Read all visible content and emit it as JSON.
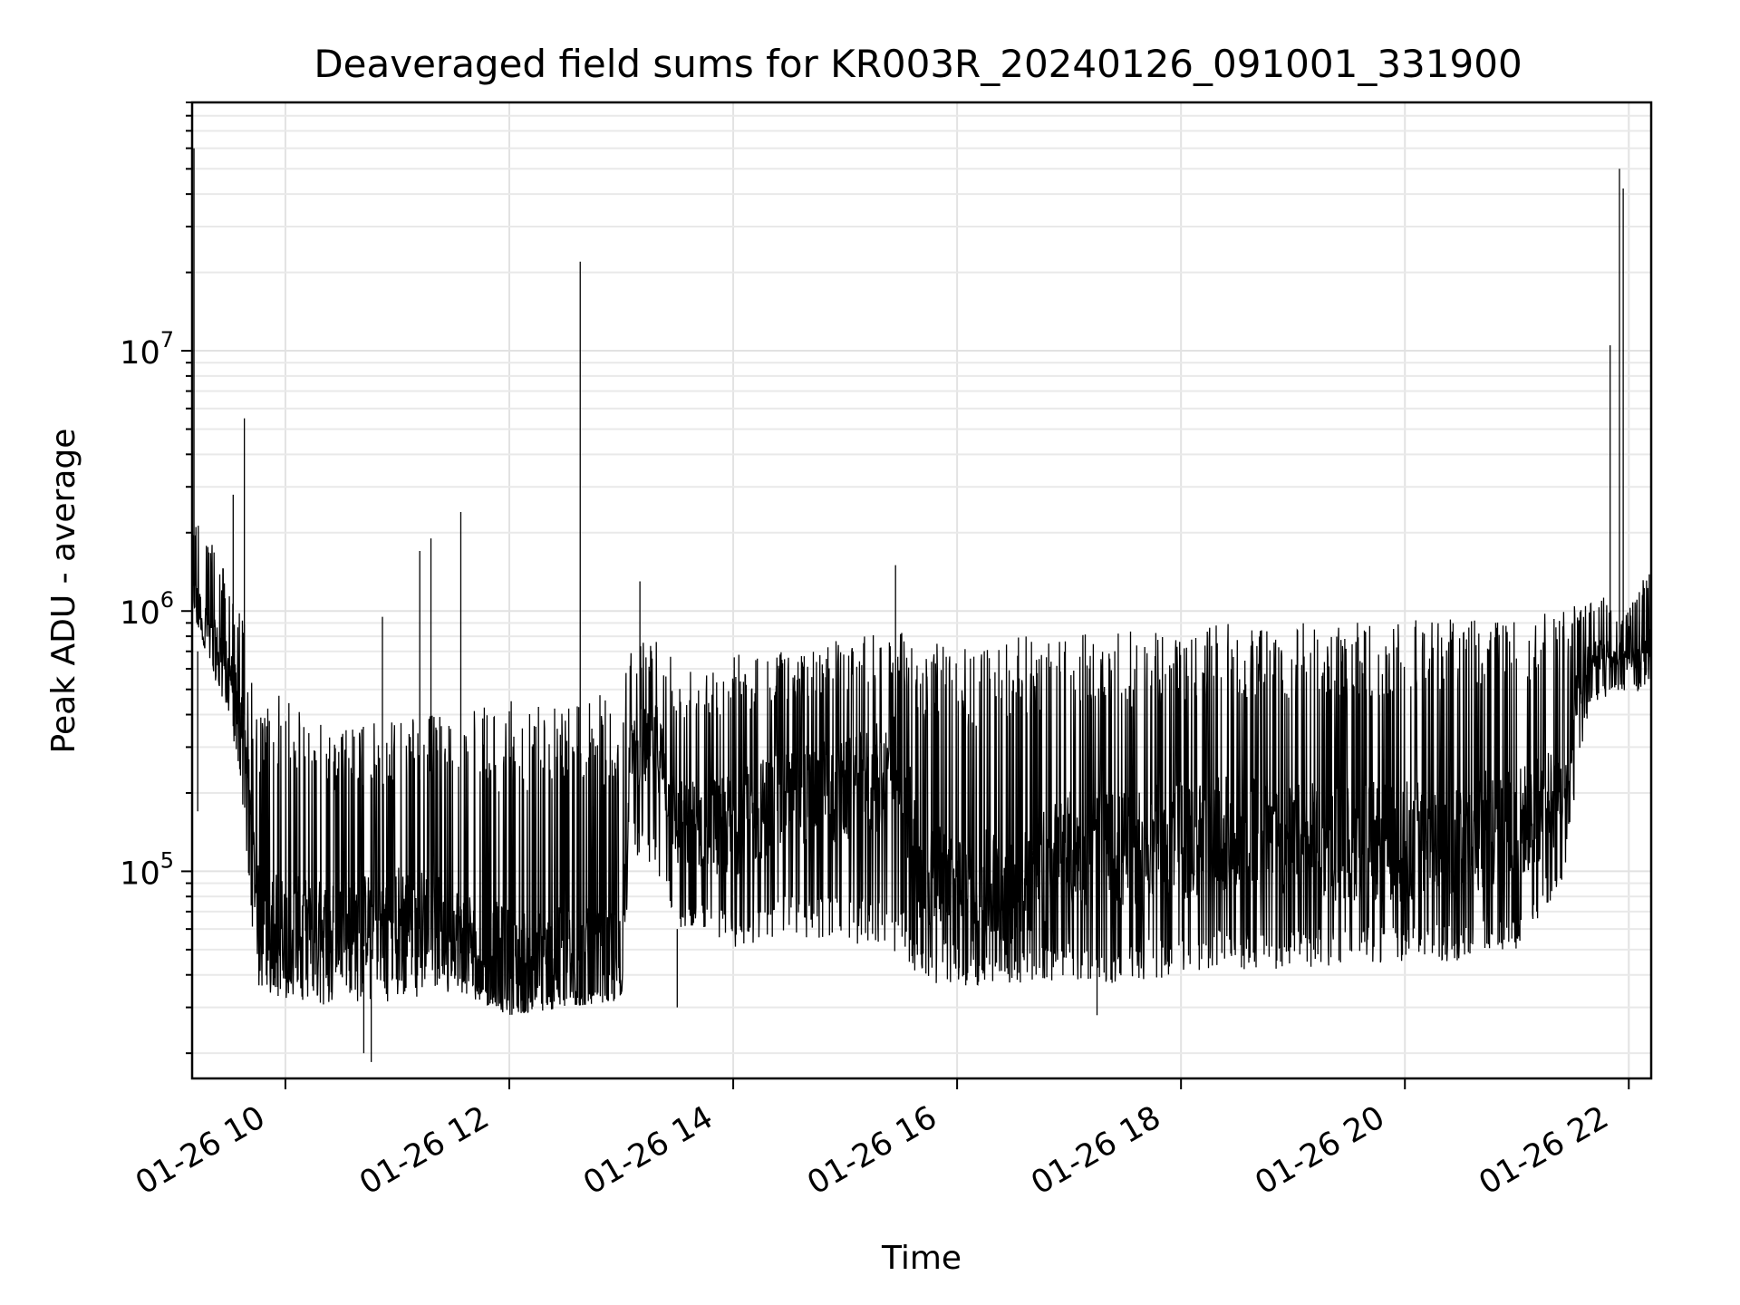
{
  "chart_data": {
    "type": "line",
    "title": "Deaveraged field sums for KR003R_20240126_091001_331900",
    "xlabel": "Time",
    "ylabel": "Peak ADU - average",
    "yscale": "log",
    "ylim": [
      16000,
      90000000
    ],
    "xlim": [
      "2024-01-26T09:10",
      "2024-01-26T22:12"
    ],
    "grid": "major and minor, light gray",
    "x_ticks": [
      {
        "t": "2024-01-26T10:00",
        "label": "01-26 10"
      },
      {
        "t": "2024-01-26T12:00",
        "label": "01-26 12"
      },
      {
        "t": "2024-01-26T14:00",
        "label": "01-26 14"
      },
      {
        "t": "2024-01-26T16:00",
        "label": "01-26 16"
      },
      {
        "t": "2024-01-26T18:00",
        "label": "01-26 18"
      },
      {
        "t": "2024-01-26T20:00",
        "label": "01-26 20"
      },
      {
        "t": "2024-01-26T22:00",
        "label": "01-26 22"
      }
    ],
    "y_ticks": [
      {
        "value": 100000,
        "base": "10",
        "exp": "5"
      },
      {
        "value": 1000000,
        "base": "10",
        "exp": "6"
      },
      {
        "value": 10000000,
        "base": "10",
        "exp": "7"
      }
    ],
    "series": [
      {
        "color": "#000000",
        "envelope": [
          {
            "t": "2024-01-26T09:10",
            "low": 1000000,
            "high": 2500000,
            "level": 1200000
          },
          {
            "t": "2024-01-26T09:20",
            "low": 600000,
            "high": 2000000,
            "level": 800000
          },
          {
            "t": "2024-01-26T09:30",
            "low": 400000,
            "high": 1300000,
            "level": 600000
          },
          {
            "t": "2024-01-26T09:38",
            "low": 150000,
            "high": 900000,
            "level": 350000
          },
          {
            "t": "2024-01-26T09:45",
            "low": 35000,
            "high": 400000,
            "level": 70000
          },
          {
            "t": "2024-01-26T10:00",
            "low": 32000,
            "high": 500000,
            "level": 60000
          },
          {
            "t": "2024-01-26T10:30",
            "low": 30000,
            "high": 350000,
            "level": 60000
          },
          {
            "t": "2024-01-26T11:00",
            "low": 32000,
            "high": 400000,
            "level": 70000
          },
          {
            "t": "2024-01-26T11:30",
            "low": 34000,
            "high": 400000,
            "level": 60000
          },
          {
            "t": "2024-01-26T12:00",
            "low": 28000,
            "high": 450000,
            "level": 45000
          },
          {
            "t": "2024-01-26T12:30",
            "low": 30000,
            "high": 470000,
            "level": 45000
          },
          {
            "t": "2024-01-26T13:00",
            "low": 32000,
            "high": 480000,
            "level": 45000
          },
          {
            "t": "2024-01-26T13:05",
            "low": 120000,
            "high": 700000,
            "level": 300000
          },
          {
            "t": "2024-01-26T13:20",
            "low": 90000,
            "high": 900000,
            "level": 300000
          },
          {
            "t": "2024-01-26T13:30",
            "low": 60000,
            "high": 600000,
            "level": 150000
          },
          {
            "t": "2024-01-26T14:00",
            "low": 50000,
            "high": 700000,
            "level": 150000
          },
          {
            "t": "2024-01-26T14:30",
            "low": 55000,
            "high": 700000,
            "level": 200000
          },
          {
            "t": "2024-01-26T15:00",
            "low": 55000,
            "high": 800000,
            "level": 200000
          },
          {
            "t": "2024-01-26T15:30",
            "low": 45000,
            "high": 850000,
            "level": 250000
          },
          {
            "t": "2024-01-26T15:40",
            "low": 38000,
            "high": 750000,
            "level": 100000
          },
          {
            "t": "2024-01-26T16:00",
            "low": 36000,
            "high": 750000,
            "level": 80000
          },
          {
            "t": "2024-01-26T16:30",
            "low": 37000,
            "high": 800000,
            "level": 90000
          },
          {
            "t": "2024-01-26T17:00",
            "low": 38000,
            "high": 800000,
            "level": 120000
          },
          {
            "t": "2024-01-26T17:30",
            "low": 37000,
            "high": 850000,
            "level": 120000
          },
          {
            "t": "2024-01-26T18:00",
            "low": 40000,
            "high": 850000,
            "level": 130000
          },
          {
            "t": "2024-01-26T18:30",
            "low": 42000,
            "high": 900000,
            "level": 140000
          },
          {
            "t": "2024-01-26T19:00",
            "low": 42000,
            "high": 900000,
            "level": 130000
          },
          {
            "t": "2024-01-26T19:30",
            "low": 44000,
            "high": 900000,
            "level": 130000
          },
          {
            "t": "2024-01-26T20:00",
            "low": 44000,
            "high": 950000,
            "level": 130000
          },
          {
            "t": "2024-01-26T20:30",
            "low": 45000,
            "high": 1000000,
            "level": 140000
          },
          {
            "t": "2024-01-26T21:00",
            "low": 50000,
            "high": 1000000,
            "level": 150000
          },
          {
            "t": "2024-01-26T21:25",
            "low": 90000,
            "high": 1000000,
            "level": 200000
          },
          {
            "t": "2024-01-26T21:33",
            "low": 250000,
            "high": 1100000,
            "level": 500000
          },
          {
            "t": "2024-01-26T21:40",
            "low": 450000,
            "high": 1200000,
            "level": 700000
          },
          {
            "t": "2024-01-26T22:00",
            "low": 480000,
            "high": 1000000,
            "level": 650000
          },
          {
            "t": "2024-01-26T22:12",
            "low": 500000,
            "high": 1800000,
            "level": 700000
          }
        ],
        "spikes": [
          {
            "t": "2024-01-26T09:10",
            "value": 50000000,
            "base": 1100000
          },
          {
            "t": "2024-01-26T09:11",
            "value": 60000000,
            "base": 1100000
          },
          {
            "t": "2024-01-26T09:13",
            "value": 170000,
            "base": 700000
          },
          {
            "t": "2024-01-26T09:38",
            "value": 5500000,
            "base": 400000
          },
          {
            "t": "2024-01-26T09:32",
            "value": 2800000,
            "base": 500000
          },
          {
            "t": "2024-01-26T11:12",
            "value": 1700000,
            "base": 60000
          },
          {
            "t": "2024-01-26T11:18",
            "value": 1900000,
            "base": 60000
          },
          {
            "t": "2024-01-26T11:34",
            "value": 2400000,
            "base": 60000
          },
          {
            "t": "2024-01-26T10:52",
            "value": 950000,
            "base": 60000
          },
          {
            "t": "2024-01-26T12:38",
            "value": 22000000,
            "base": 45000
          },
          {
            "t": "2024-01-26T13:10",
            "value": 1300000,
            "base": 300000
          },
          {
            "t": "2024-01-26T15:27",
            "value": 1500000,
            "base": 250000
          },
          {
            "t": "2024-01-26T21:50",
            "value": 10500000,
            "base": 700000
          },
          {
            "t": "2024-01-26T21:55",
            "value": 50000000,
            "base": 700000
          },
          {
            "t": "2024-01-26T21:57",
            "value": 42000000,
            "base": 700000
          },
          {
            "t": "2024-01-26T10:42",
            "value": 20000,
            "base": 50000
          },
          {
            "t": "2024-01-26T10:46",
            "value": 18500,
            "base": 50000
          },
          {
            "t": "2024-01-26T17:15",
            "value": 28000,
            "base": 80000
          },
          {
            "t": "2024-01-26T13:30",
            "value": 30000,
            "base": 60000
          }
        ]
      }
    ]
  }
}
